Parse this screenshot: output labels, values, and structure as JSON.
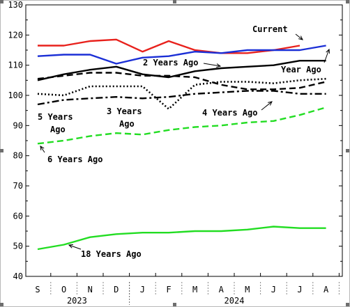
{
  "chart_data": {
    "type": "line",
    "ylim": [
      40,
      130
    ],
    "y_ticks": [
      "40",
      "50",
      "60",
      "70",
      "80",
      "90",
      "100",
      "110",
      "120",
      "130"
    ],
    "categories": [
      "S",
      "O",
      "N",
      "D",
      "J",
      "F",
      "M",
      "A",
      "M",
      "J",
      "J",
      "A"
    ],
    "year_labels": [
      "2023",
      "2024"
    ],
    "grid": false,
    "legend": "none",
    "series": [
      {
        "name": "Current",
        "color": "#e8211c",
        "dash": "solid",
        "values": [
          116.5,
          116.5,
          118,
          118.5,
          114.5,
          118,
          115,
          114,
          114,
          115,
          116.5,
          null
        ]
      },
      {
        "name": "2 Years Ago",
        "color": "#1b2fd6",
        "dash": "solid",
        "values": [
          113,
          113.5,
          113.5,
          110.5,
          112.5,
          113,
          114.5,
          114,
          115,
          115,
          115,
          116.5
        ]
      },
      {
        "name": "Year Ago",
        "color": "#000000",
        "dash": "solid",
        "values": [
          105,
          107,
          108.5,
          109.5,
          107,
          106,
          108,
          109,
          109.5,
          110,
          111.5,
          111.5
        ]
      },
      {
        "name": "5 Years Ago",
        "color": "#000000",
        "dash": "dash",
        "values": [
          105.5,
          106.5,
          107.5,
          107.5,
          106.5,
          106.5,
          106,
          103.5,
          102,
          102,
          102.5,
          104.5
        ]
      },
      {
        "name": "3 Years Ago",
        "color": "#000000",
        "dash": "dot",
        "values": [
          100.5,
          100,
          103,
          103,
          103,
          95.5,
          103.5,
          104.5,
          104.5,
          104,
          105,
          105.5
        ]
      },
      {
        "name": "4 Years Ago",
        "color": "#000000",
        "dash": "dashdot",
        "values": [
          97,
          98.5,
          99,
          99.5,
          99,
          99.5,
          100.5,
          101,
          101.5,
          101.5,
          100.5,
          100.5
        ]
      },
      {
        "name": "6 Years Ago",
        "color": "#22dd22",
        "dash": "dash",
        "values": [
          84,
          85,
          86.5,
          87.5,
          87,
          88.5,
          89.5,
          90,
          91,
          91.5,
          93.5,
          96
        ]
      },
      {
        "name": "18 Years Ago",
        "color": "#22dd22",
        "dash": "solid",
        "values": [
          49,
          50.5,
          53,
          54,
          54.5,
          54.5,
          55,
          55,
          55.5,
          56.5,
          56,
          56
        ]
      }
    ],
    "annotations": [
      {
        "text": "Current",
        "series": "Current"
      },
      {
        "text": "2 Years Ago",
        "series": "2 Years Ago"
      },
      {
        "text": "Year Ago",
        "series": "Year Ago"
      },
      {
        "text": "5 Years",
        "series": "5 Years Ago"
      },
      {
        "text": "Ago",
        "series": "5 Years Ago"
      },
      {
        "text": "3 Years",
        "series": "3 Years Ago"
      },
      {
        "text": "Ago",
        "series": "3 Years Ago"
      },
      {
        "text": "4 Years Ago",
        "series": "4 Years Ago"
      },
      {
        "text": "6 Years Ago",
        "series": "6 Years Ago"
      },
      {
        "text": "18 Years Ago",
        "series": "18 Years Ago"
      }
    ]
  }
}
